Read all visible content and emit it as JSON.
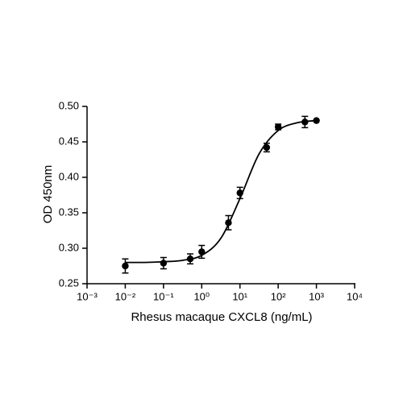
{
  "chart_data": {
    "type": "scatter",
    "xlabel": "Rhesus macaque CXCL8 (ng/mL)",
    "ylabel": "OD 450nm",
    "xscale": "log",
    "xlim": [
      0.001,
      10000
    ],
    "ylim": [
      0.25,
      0.5
    ],
    "xticks": [
      {
        "value": 0.001,
        "label": "10⁻³"
      },
      {
        "value": 0.01,
        "label": "10⁻²"
      },
      {
        "value": 0.1,
        "label": "10⁻¹"
      },
      {
        "value": 1,
        "label": "10⁰"
      },
      {
        "value": 10,
        "label": "10¹"
      },
      {
        "value": 100,
        "label": "10²"
      },
      {
        "value": 1000,
        "label": "10³"
      },
      {
        "value": 10000,
        "label": "10⁴"
      }
    ],
    "yticks": [
      0.25,
      {
        "value": 0.3,
        "label": "0.30"
      },
      0.35,
      {
        "value": 0.4,
        "label": "0.40"
      },
      0.45,
      {
        "value": 0.5,
        "label": "0.50"
      }
    ],
    "series": [
      {
        "type": "scatter",
        "color": "#000000",
        "x": [
          0.01,
          0.1,
          0.5,
          1,
          5,
          10,
          50,
          100,
          500,
          1000
        ],
        "values": [
          0.275,
          0.279,
          0.285,
          0.295,
          0.336,
          0.378,
          0.442,
          0.471,
          0.478,
          0.48
        ],
        "errors": [
          0.01,
          0.008,
          0.007,
          0.009,
          0.01,
          0.008,
          0.006,
          0.004,
          0.008,
          0.001
        ]
      },
      {
        "type": "line",
        "color": "#000000",
        "x": [
          0.01,
          0.0316,
          0.1,
          0.316,
          1,
          3.16,
          10,
          31.6,
          100,
          316,
          1000
        ],
        "values": [
          0.28,
          0.28,
          0.281,
          0.283,
          0.29,
          0.314,
          0.37,
          0.433,
          0.466,
          0.477,
          0.48
        ]
      }
    ]
  }
}
